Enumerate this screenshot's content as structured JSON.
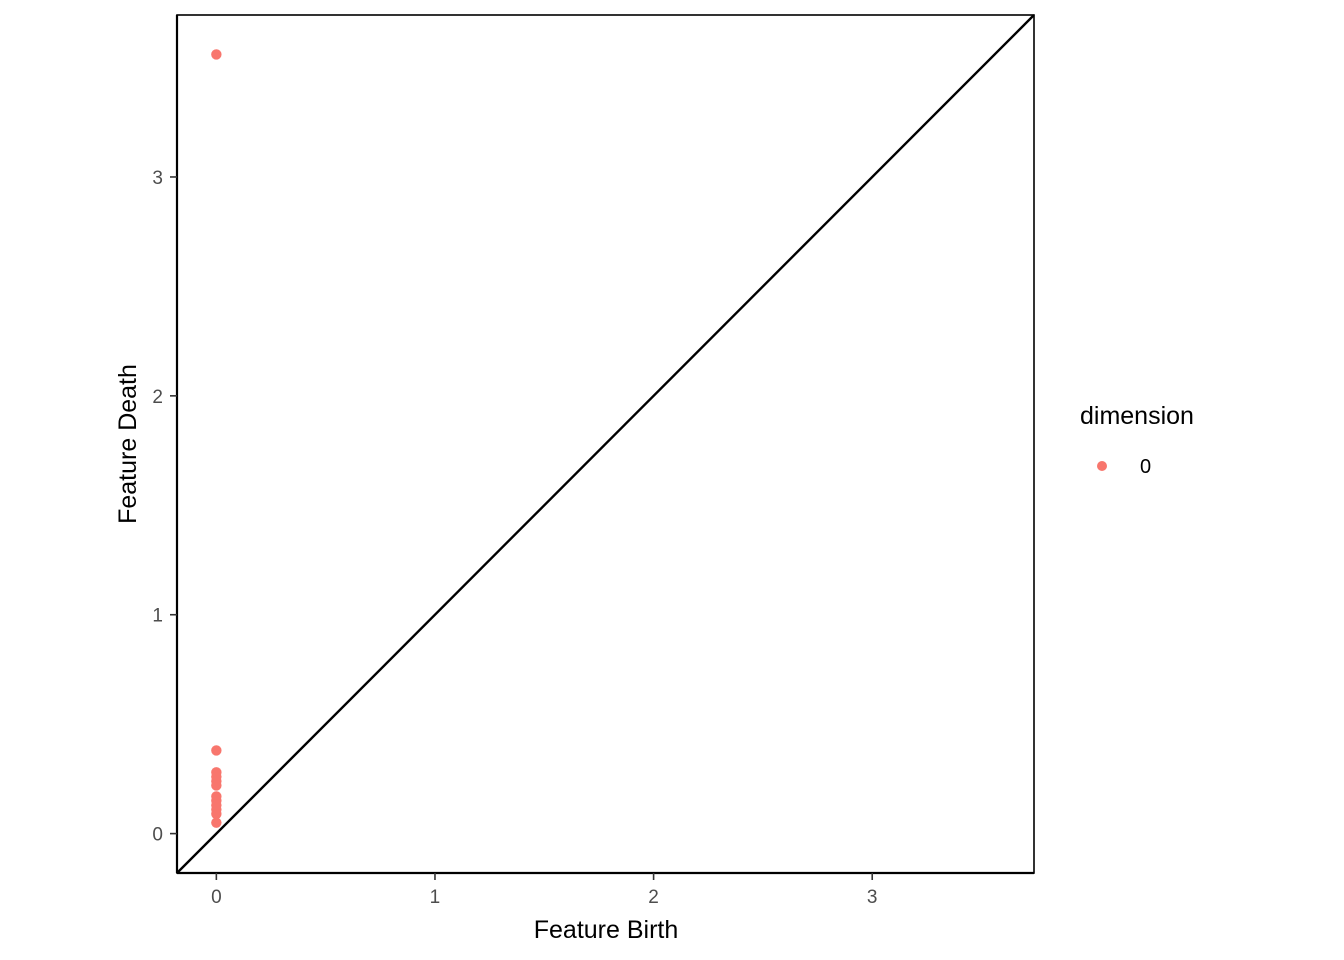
{
  "chart_data": {
    "type": "scatter",
    "xlabel": "Feature Birth",
    "ylabel": "Feature Death",
    "xlim": [
      -0.18,
      3.74
    ],
    "ylim": [
      -0.18,
      3.74
    ],
    "x_ticks": [
      0,
      1,
      2,
      3
    ],
    "y_ticks": [
      0,
      1,
      2,
      3
    ],
    "x_tick_labels": [
      "0",
      "1",
      "2",
      "3"
    ],
    "y_tick_labels": [
      "0",
      "1",
      "2",
      "3"
    ],
    "grid": false,
    "legend": {
      "title": "dimension",
      "position": "right",
      "entries": [
        {
          "label": "0",
          "color": "#F8766D"
        }
      ]
    },
    "reference_line": {
      "slope": 1,
      "intercept": 0,
      "color": "#000000"
    },
    "series": [
      {
        "name": "0",
        "color": "#F8766D",
        "points": [
          [
            0,
            3.56
          ],
          [
            0,
            0.38
          ],
          [
            0,
            0.28
          ],
          [
            0,
            0.26
          ],
          [
            0,
            0.24
          ],
          [
            0,
            0.22
          ],
          [
            0,
            0.17
          ],
          [
            0,
            0.15
          ],
          [
            0,
            0.13
          ],
          [
            0,
            0.11
          ],
          [
            0,
            0.09
          ],
          [
            0,
            0.05
          ]
        ]
      }
    ]
  }
}
